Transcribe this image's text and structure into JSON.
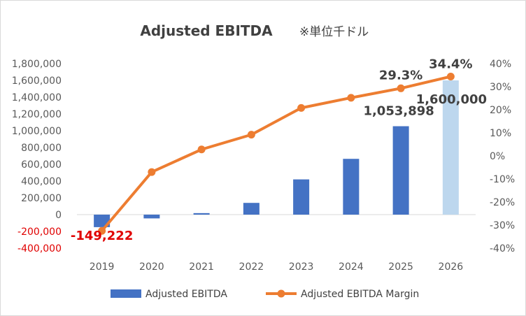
{
  "chart_data": {
    "type": "bar",
    "title": "Adjusted EBITDA",
    "subtitle": "※単位千ドル",
    "categories": [
      "2019",
      "2020",
      "2021",
      "2022",
      "2023",
      "2024",
      "2025",
      "2026"
    ],
    "series": [
      {
        "name": "Adjusted EBITDA",
        "type": "bar",
        "axis": "left",
        "color": "#4472c4",
        "highlight_color": "#bdd7ee",
        "highlight_index": 7,
        "values": [
          -149222,
          -45000,
          18000,
          140000,
          420000,
          665000,
          1053898,
          1600000
        ]
      },
      {
        "name": "Adjusted EBITDA Margin",
        "type": "line",
        "axis": "right",
        "color": "#ed7d31",
        "values": [
          -32.5,
          -7.0,
          2.8,
          9.2,
          20.8,
          25.2,
          29.3,
          34.4
        ]
      }
    ],
    "y_left": {
      "min": -400000,
      "max": 1800000,
      "ticks": [
        -400000,
        -200000,
        0,
        200000,
        400000,
        600000,
        800000,
        1000000,
        1200000,
        1400000,
        1600000,
        1800000
      ],
      "tick_labels": [
        "-400,000",
        "-200,000",
        "0",
        "200,000",
        "400,000",
        "600,000",
        "800,000",
        "1,000,000",
        "1,200,000",
        "1,400,000",
        "1,600,000",
        "1,800,000"
      ],
      "negative_tick_color": "#e00000"
    },
    "y_right": {
      "min": -40,
      "max": 40,
      "ticks": [
        -40,
        -30,
        -20,
        -10,
        0,
        10,
        20,
        30,
        40
      ],
      "tick_labels": [
        "-40%",
        "-30%",
        "-20%",
        "-10%",
        "0%",
        "10%",
        "20%",
        "30%",
        "40%"
      ]
    },
    "data_labels": [
      {
        "series": 0,
        "index": 0,
        "text": "-149,222",
        "color": "#e00000"
      },
      {
        "series": 0,
        "index": 6,
        "text": "1,053,898"
      },
      {
        "series": 0,
        "index": 7,
        "text": "1,600,000"
      },
      {
        "series": 1,
        "index": 6,
        "text": "29.3%"
      },
      {
        "series": 1,
        "index": 7,
        "text": "34.4%"
      }
    ],
    "grid": false,
    "legend_position": "bottom"
  }
}
